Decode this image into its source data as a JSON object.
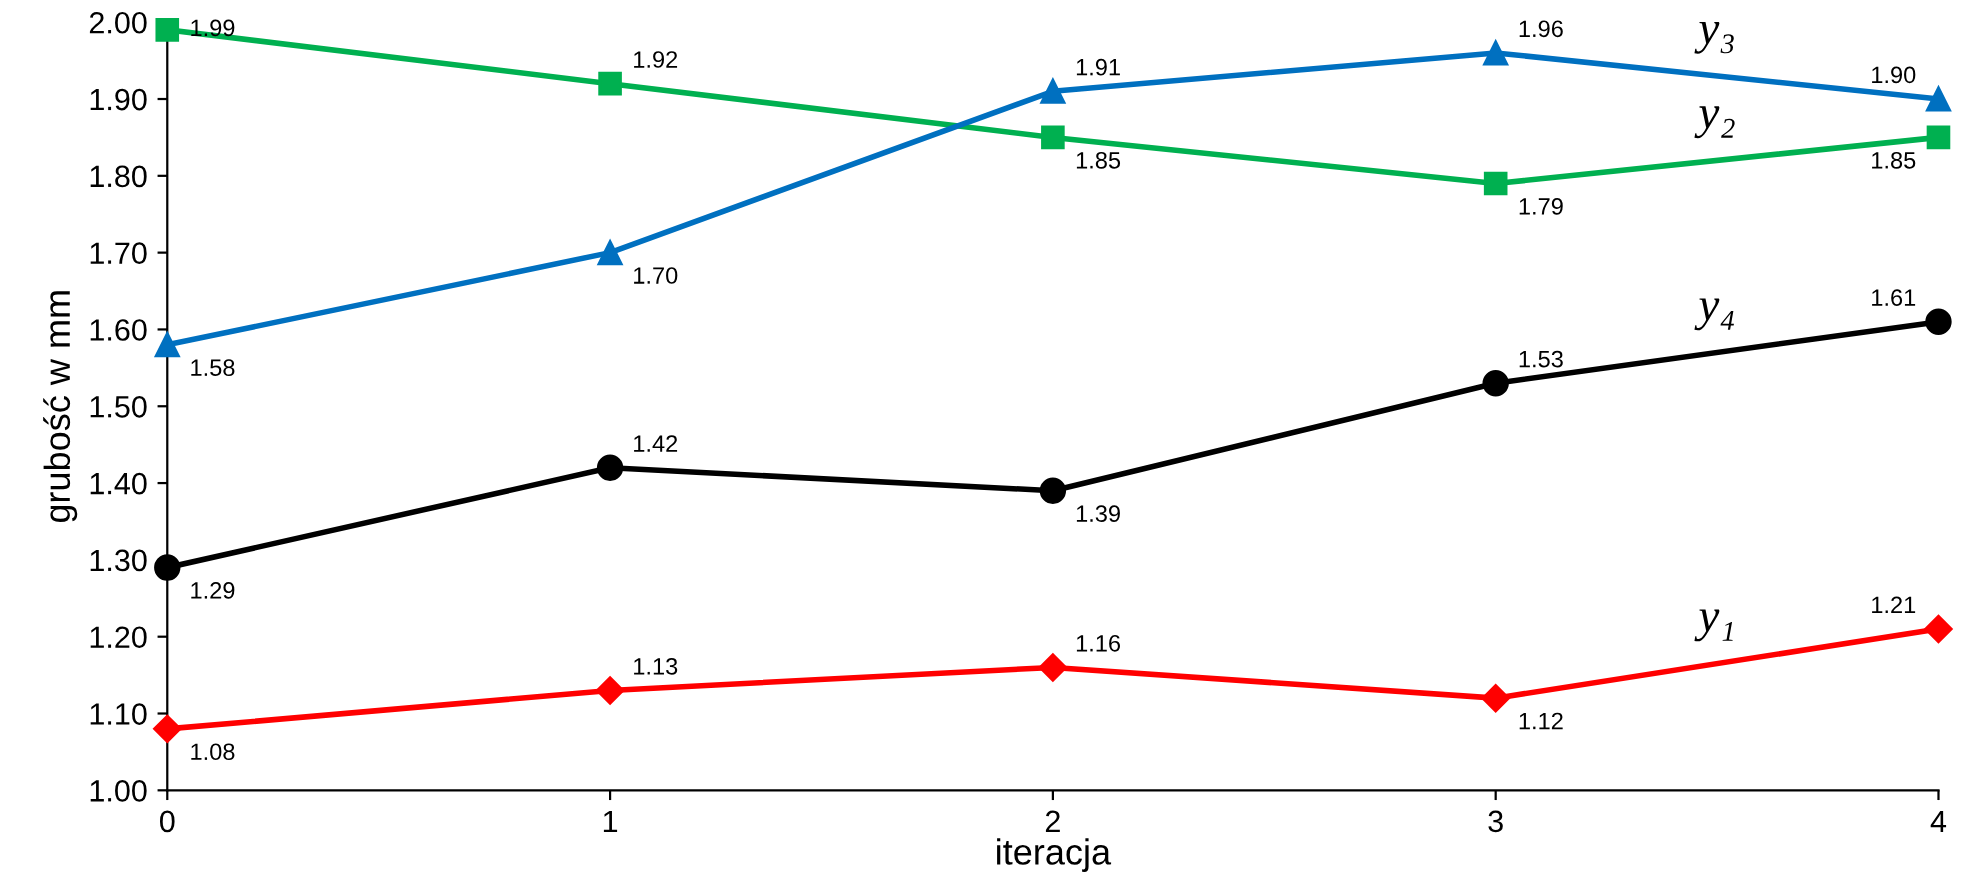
{
  "chart_data": {
    "type": "line",
    "xlabel": "iteracja",
    "ylabel": "grubość w mm",
    "x": [
      0,
      1,
      2,
      3,
      4
    ],
    "xlim": [
      0,
      4
    ],
    "xticks": [
      0,
      1,
      2,
      3,
      4
    ],
    "ylim": [
      1.0,
      2.0
    ],
    "yticks": [
      {
        "value": 1.0,
        "label": "1.00"
      },
      {
        "value": 1.1,
        "label": "1.10"
      },
      {
        "value": 1.2,
        "label": "1.20"
      },
      {
        "value": 1.3,
        "label": "1.30"
      },
      {
        "value": 1.4,
        "label": "1.40"
      },
      {
        "value": 1.5,
        "label": "1.50"
      },
      {
        "value": 1.6,
        "label": "1.60"
      },
      {
        "value": 1.7,
        "label": "1.70"
      },
      {
        "value": 1.8,
        "label": "1.80"
      },
      {
        "value": 1.9,
        "label": "1.90"
      },
      {
        "value": 2.0,
        "label": "2.00"
      }
    ],
    "grid": false,
    "legend": false,
    "line_style": "solid",
    "series": [
      {
        "name": "y₂",
        "color": "#00b050",
        "marker": "square",
        "values": [
          1.99,
          1.92,
          1.85,
          1.79,
          1.85
        ],
        "value_labels": [
          "1.99",
          "1.92",
          "1.85",
          "1.79",
          "1.85"
        ]
      },
      {
        "name": "y₃",
        "color": "#0070c0",
        "marker": "triangle",
        "values": [
          1.58,
          1.7,
          1.91,
          1.96,
          1.9
        ],
        "value_labels": [
          "1.58",
          "1.70",
          "1.91",
          "1.96",
          "1.90"
        ]
      },
      {
        "name": "y₄",
        "color": "#000000",
        "marker": "circle",
        "values": [
          1.29,
          1.42,
          1.39,
          1.53,
          1.61
        ],
        "value_labels": [
          "1.29",
          "1.42",
          "1.39",
          "1.53",
          "1.61"
        ]
      },
      {
        "name": "y₁",
        "color": "#ff0000",
        "marker": "diamond",
        "values": [
          1.08,
          1.13,
          1.16,
          1.12,
          1.21
        ],
        "value_labels": [
          "1.08",
          "1.13",
          "1.16",
          "1.12",
          "1.21"
        ]
      }
    ]
  }
}
